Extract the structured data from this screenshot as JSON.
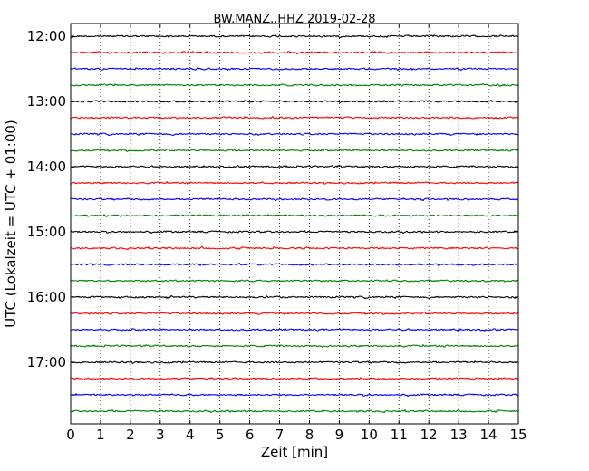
{
  "chart_data": {
    "type": "line",
    "title": "BW.MANZ..HHZ 2019-02-28",
    "xlabel": "Zeit  [min]",
    "ylabel": "UTC (Lokalzeit = UTC + 01:00)",
    "xlim": [
      0,
      15
    ],
    "x_ticks": [
      "0",
      "1",
      "2",
      "3",
      "4",
      "5",
      "6",
      "7",
      "8",
      "9",
      "10",
      "11",
      "12",
      "13",
      "14",
      "15"
    ],
    "y_ticks": [
      "12:00",
      "13:00",
      "14:00",
      "15:00",
      "16:00",
      "17:00"
    ],
    "grid": "vertical-dotted",
    "trace_interval_minutes": 15,
    "colors": [
      "#000000",
      "#ff0000",
      "#0000ff",
      "#008000"
    ],
    "traces": [
      {
        "start": "12:00",
        "color": "#000000"
      },
      {
        "start": "12:15",
        "color": "#ff0000"
      },
      {
        "start": "12:30",
        "color": "#0000ff"
      },
      {
        "start": "12:45",
        "color": "#008000"
      },
      {
        "start": "13:00",
        "color": "#000000"
      },
      {
        "start": "13:15",
        "color": "#ff0000"
      },
      {
        "start": "13:30",
        "color": "#0000ff"
      },
      {
        "start": "13:45",
        "color": "#008000"
      },
      {
        "start": "14:00",
        "color": "#000000"
      },
      {
        "start": "14:15",
        "color": "#ff0000"
      },
      {
        "start": "14:30",
        "color": "#0000ff"
      },
      {
        "start": "14:45",
        "color": "#008000"
      },
      {
        "start": "15:00",
        "color": "#000000"
      },
      {
        "start": "15:15",
        "color": "#ff0000"
      },
      {
        "start": "15:30",
        "color": "#0000ff"
      },
      {
        "start": "15:45",
        "color": "#008000"
      },
      {
        "start": "16:00",
        "color": "#000000"
      },
      {
        "start": "16:15",
        "color": "#ff0000"
      },
      {
        "start": "16:30",
        "color": "#0000ff"
      },
      {
        "start": "16:45",
        "color": "#008000"
      },
      {
        "start": "17:00",
        "color": "#000000"
      },
      {
        "start": "17:15",
        "color": "#ff0000"
      },
      {
        "start": "17:30",
        "color": "#0000ff"
      },
      {
        "start": "17:45",
        "color": "#008000"
      }
    ]
  }
}
